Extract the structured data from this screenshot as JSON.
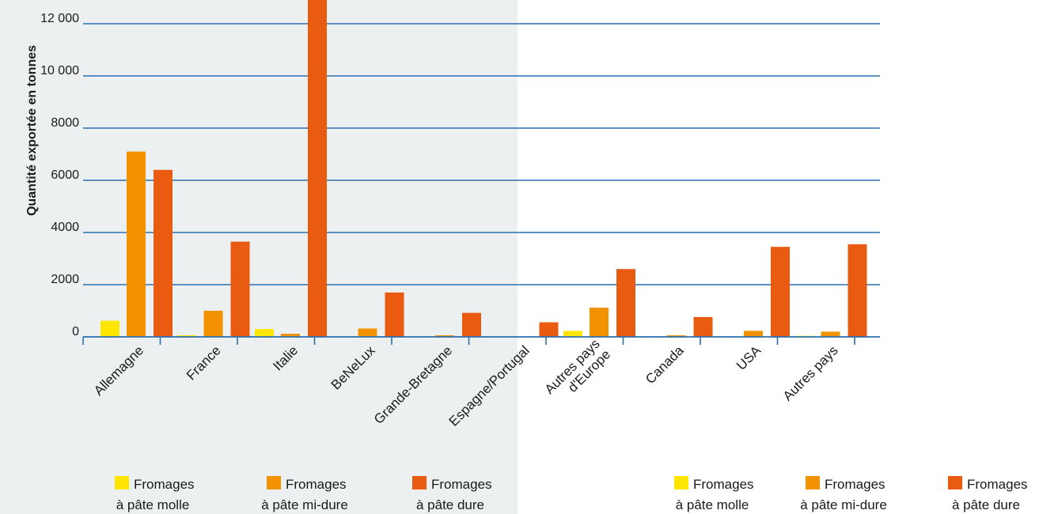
{
  "chart_data": {
    "type": "bar",
    "ylabel": "Quantité exportée en tonnes",
    "ylim": [
      0,
      13000
    ],
    "yticks": [
      0,
      2000,
      4000,
      6000,
      8000,
      10000,
      12000
    ],
    "ytick_labels": [
      "0",
      "2000",
      "4000",
      "6000",
      "8000",
      "10 000",
      "12 000"
    ],
    "grid": true,
    "categories": [
      [
        "Allemagne"
      ],
      [
        "France"
      ],
      [
        "Italie"
      ],
      [
        "BeNeLux"
      ],
      [
        "Grande-Bretagne"
      ],
      [
        "Espagne/Portugal"
      ],
      [
        "Autres pays",
        "d'Europe"
      ],
      [
        "Canada"
      ],
      [
        "USA"
      ],
      [
        "Autres pays"
      ]
    ],
    "series": [
      {
        "name": "Fromages à pâte molle",
        "color": "#ffe600",
        "values": [
          620,
          60,
          300,
          0,
          0,
          0,
          230,
          0,
          0,
          40
        ]
      },
      {
        "name": "Fromages à pâte mi-dure",
        "color": "#f39200",
        "values": [
          7100,
          1000,
          120,
          320,
          60,
          0,
          1120,
          60,
          230,
          200
        ]
      },
      {
        "name": "Fromages à pâte dure",
        "color": "#e85b10",
        "values": [
          6400,
          3650,
          13000,
          1700,
          920,
          560,
          2600,
          760,
          3450,
          3550
        ]
      }
    ],
    "legends": [
      {
        "placement": "bottom-left",
        "entries": [
          {
            "line1": "Fromages",
            "line2": "à pâte molle",
            "color": "#ffe600"
          },
          {
            "line1": "Fromages",
            "line2": "à pâte mi-dure",
            "color": "#f39200"
          },
          {
            "line1": "Fromages",
            "line2": "à pâte dure",
            "color": "#e85b10"
          }
        ]
      },
      {
        "placement": "bottom-right",
        "entries": [
          {
            "line1": "Fromages",
            "line2": "à pâte molle",
            "color": "#ffe600"
          },
          {
            "line1": "Fromages",
            "line2": "à pâte mi-dure",
            "color": "#f39200"
          },
          {
            "line1": "Fromages",
            "line2": "à pâte dure",
            "color": "#e85b10"
          }
        ]
      }
    ],
    "colors": {
      "grid": "#2a6fb0",
      "axis": "#2a6fb0",
      "shaded_background": "#edf0f1"
    }
  }
}
